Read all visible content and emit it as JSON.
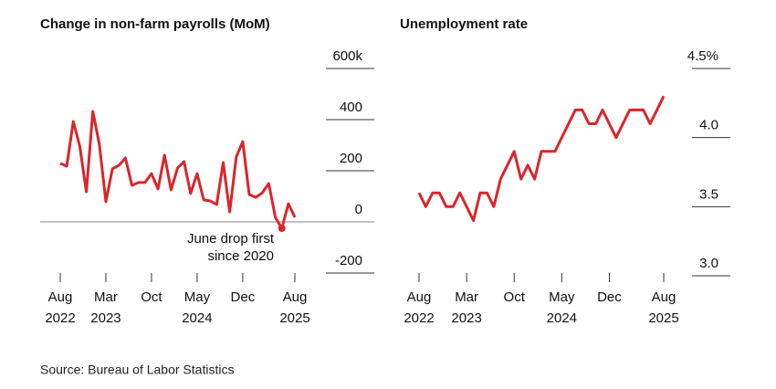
{
  "chart_data": [
    {
      "type": "line",
      "title": "Change in non-farm payrolls (MoM)",
      "x": [
        "2022-08",
        "2022-09",
        "2022-10",
        "2022-11",
        "2022-12",
        "2023-01",
        "2023-02",
        "2023-03",
        "2023-04",
        "2023-05",
        "2023-06",
        "2023-07",
        "2023-08",
        "2023-09",
        "2023-10",
        "2023-11",
        "2023-12",
        "2024-01",
        "2024-02",
        "2024-03",
        "2024-04",
        "2024-05",
        "2024-06",
        "2024-07",
        "2024-08",
        "2024-09",
        "2024-10",
        "2024-11",
        "2024-12",
        "2025-01",
        "2025-02",
        "2025-03",
        "2025-04",
        "2025-05",
        "2025-06",
        "2025-07",
        "2025-08"
      ],
      "series": [
        {
          "name": "Change in non-farm payrolls",
          "color": "#d9262c",
          "values": [
            229,
            218,
            393,
            296,
            118,
            432,
            304,
            79,
            207,
            221,
            250,
            143,
            154,
            154,
            189,
            129,
            261,
            125,
            211,
            236,
            111,
            189,
            86,
            82,
            68,
            232,
            39,
            254,
            314,
            107,
            96,
            114,
            150,
            18,
            -25,
            71,
            18
          ]
        }
      ],
      "ylim": [
        -200,
        600
      ],
      "yticks": [
        {
          "value": 600,
          "label": "600k"
        },
        400,
        200,
        0,
        -200
      ],
      "xticks": [
        {
          "value": "2022-08",
          "label": "Aug",
          "sublabel": "2022"
        },
        {
          "value": "2023-03",
          "label": "Mar",
          "sublabel": "2023"
        },
        {
          "value": "2023-10",
          "label": "Oct"
        },
        {
          "value": "2024-05",
          "label": "May",
          "sublabel": "2024"
        },
        {
          "value": "2024-12",
          "label": "Dec"
        },
        {
          "value": "2025-08",
          "label": "Aug",
          "sublabel": "2025"
        }
      ],
      "marker": "2025-06",
      "annotation": [
        "June drop first",
        "since 2020"
      ]
    },
    {
      "type": "line",
      "title": "Unemployment rate",
      "x": [
        "2022-08",
        "2022-09",
        "2022-10",
        "2022-11",
        "2022-12",
        "2023-01",
        "2023-02",
        "2023-03",
        "2023-04",
        "2023-05",
        "2023-06",
        "2023-07",
        "2023-08",
        "2023-09",
        "2023-10",
        "2023-11",
        "2023-12",
        "2024-01",
        "2024-02",
        "2024-03",
        "2024-04",
        "2024-05",
        "2024-06",
        "2024-07",
        "2024-08",
        "2024-09",
        "2024-10",
        "2024-11",
        "2024-12",
        "2025-01",
        "2025-02",
        "2025-03",
        "2025-04",
        "2025-05",
        "2025-06",
        "2025-07",
        "2025-08"
      ],
      "series": [
        {
          "name": "Unemployment rate",
          "color": "#d9262c",
          "values": [
            3.6,
            3.5,
            3.6,
            3.6,
            3.5,
            3.5,
            3.6,
            3.5,
            3.4,
            3.6,
            3.6,
            3.5,
            3.7,
            3.8,
            3.9,
            3.7,
            3.8,
            3.7,
            3.9,
            3.9,
            3.9,
            4.0,
            4.1,
            4.2,
            4.2,
            4.1,
            4.1,
            4.2,
            4.1,
            4.0,
            4.1,
            4.2,
            4.2,
            4.2,
            4.1,
            4.2,
            4.3
          ]
        }
      ],
      "ylim": [
        3.0,
        4.5
      ],
      "yticks": [
        {
          "value": 4.5,
          "label": "4.5%"
        },
        {
          "value": 4.0,
          "label": "4.0"
        },
        3.5,
        {
          "value": 3.0,
          "label": "3.0"
        }
      ],
      "xticks": [
        {
          "value": "2022-08",
          "label": "Aug",
          "sublabel": "2022"
        },
        {
          "value": "2023-03",
          "label": "Mar",
          "sublabel": "2023"
        },
        {
          "value": "2023-10",
          "label": "Oct"
        },
        {
          "value": "2024-05",
          "label": "May",
          "sublabel": "2024"
        },
        {
          "value": "2024-12",
          "label": "Dec"
        },
        {
          "value": "2025-08",
          "label": "Aug",
          "sublabel": "2025"
        }
      ]
    }
  ],
  "source": "Source: Bureau of Labor Statistics"
}
